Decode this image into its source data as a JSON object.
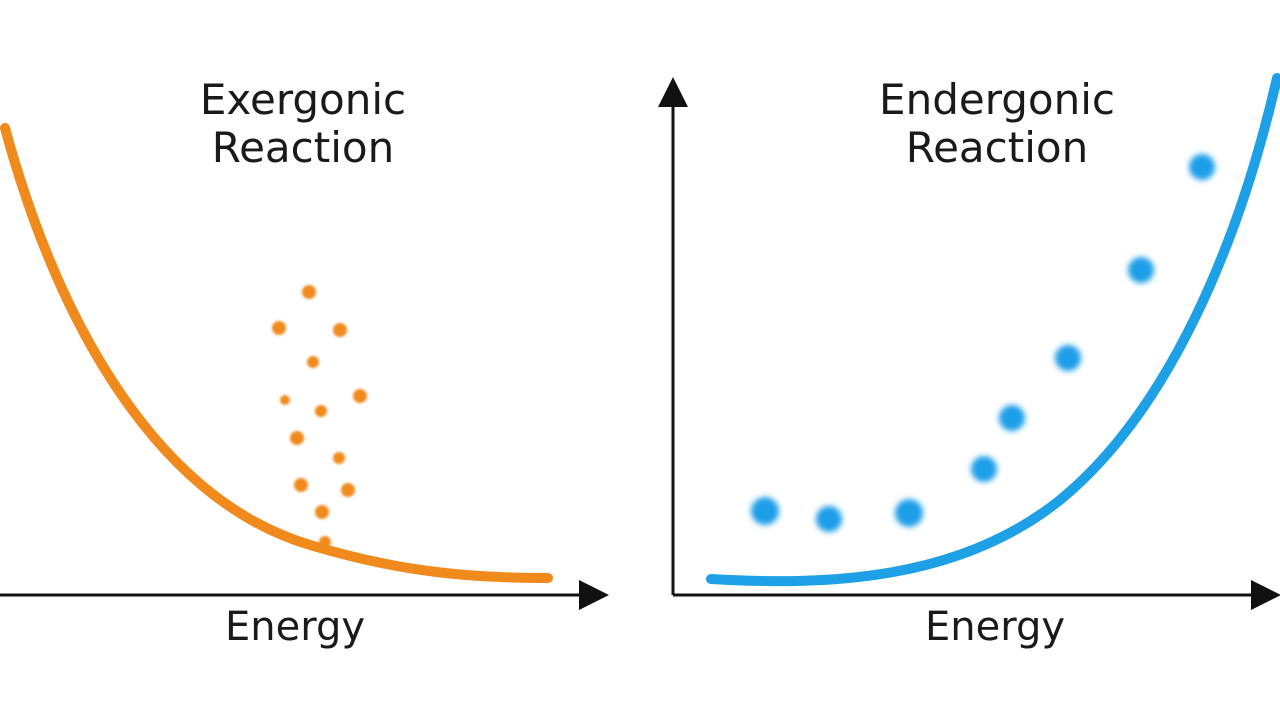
{
  "panels": [
    {
      "title": "Exergonic\nReaction",
      "xlabel": "Energy",
      "curve_color": "#f08a1c",
      "dot_color": "#f08a1c"
    },
    {
      "title": "Endergonic\nReaction",
      "xlabel": "Energy",
      "curve_color": "#1ea0e6",
      "dot_color": "#1e9ee8"
    }
  ],
  "axis_color": "#111111"
}
